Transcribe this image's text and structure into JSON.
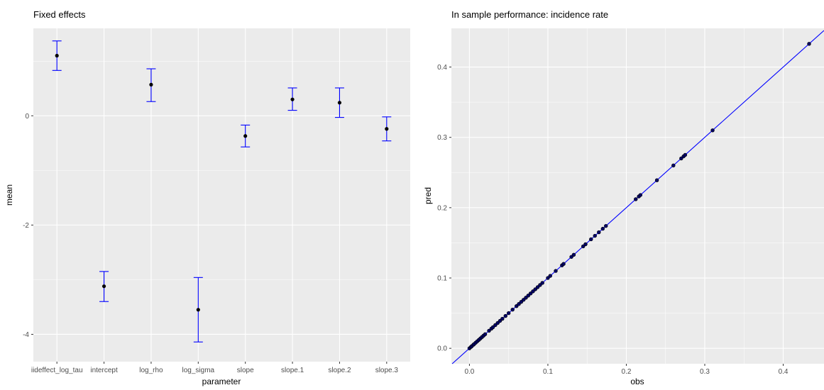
{
  "chart_data": [
    {
      "type": "scatter",
      "subtype": "errorbar",
      "title": "Fixed effects",
      "xlabel": "parameter",
      "ylabel": "mean",
      "categories": [
        "iideffect_log_tau",
        "intercept",
        "log_rho",
        "log_sigma",
        "slope",
        "slope.1",
        "slope.2",
        "slope.3"
      ],
      "series": [
        {
          "values": [
            1.1,
            -3.12,
            0.57,
            -3.55,
            -0.37,
            0.3,
            0.24,
            -0.24
          ],
          "lower": [
            0.83,
            -3.4,
            0.26,
            -4.14,
            -0.57,
            0.1,
            -0.03,
            -0.46
          ],
          "upper": [
            1.37,
            -2.85,
            0.86,
            -2.96,
            -0.17,
            0.51,
            0.51,
            -0.02
          ]
        }
      ],
      "ylim": [
        -4.5,
        1.6
      ],
      "yticks": [
        -4,
        -2,
        0
      ],
      "grid": true,
      "colors": {
        "point": "#000000",
        "errorbar": "#0000ff",
        "panel": "#ebebeb",
        "grid": "#ffffff"
      }
    },
    {
      "type": "scatter",
      "title": "In sample performance: incidence rate",
      "xlabel": "obs",
      "ylabel": "pred",
      "xlim": [
        -0.023,
        0.452
      ],
      "ylim": [
        -0.022,
        0.455
      ],
      "xticks": [
        0.0,
        0.1,
        0.2,
        0.3,
        0.4
      ],
      "yticks": [
        0.0,
        0.1,
        0.2,
        0.3,
        0.4
      ],
      "x": [
        0.0,
        0.002,
        0.003,
        0.005,
        0.006,
        0.008,
        0.01,
        0.012,
        0.014,
        0.016,
        0.018,
        0.02,
        0.025,
        0.028,
        0.03,
        0.033,
        0.036,
        0.039,
        0.042,
        0.046,
        0.05,
        0.055,
        0.06,
        0.063,
        0.066,
        0.069,
        0.072,
        0.075,
        0.078,
        0.081,
        0.084,
        0.087,
        0.09,
        0.093,
        0.1,
        0.103,
        0.11,
        0.118,
        0.12,
        0.13,
        0.133,
        0.145,
        0.148,
        0.155,
        0.16,
        0.165,
        0.17,
        0.174,
        0.212,
        0.216,
        0.218,
        0.239,
        0.26,
        0.27,
        0.273,
        0.275,
        0.31,
        0.433
      ],
      "y": [
        0.0,
        0.002,
        0.003,
        0.005,
        0.006,
        0.008,
        0.01,
        0.012,
        0.014,
        0.016,
        0.018,
        0.02,
        0.025,
        0.028,
        0.03,
        0.033,
        0.036,
        0.039,
        0.042,
        0.046,
        0.05,
        0.055,
        0.06,
        0.063,
        0.066,
        0.069,
        0.072,
        0.075,
        0.078,
        0.081,
        0.084,
        0.087,
        0.09,
        0.093,
        0.1,
        0.103,
        0.11,
        0.118,
        0.12,
        0.13,
        0.133,
        0.145,
        0.148,
        0.155,
        0.16,
        0.165,
        0.17,
        0.174,
        0.212,
        0.216,
        0.218,
        0.239,
        0.26,
        0.27,
        0.273,
        0.275,
        0.31,
        0.433
      ],
      "reference_line": {
        "slope": 1,
        "intercept": 0
      },
      "grid": true,
      "colors": {
        "point_fill": "#000066",
        "point_edge": "#000000",
        "line": "#0000ff",
        "panel": "#ebebeb",
        "grid": "#ffffff"
      }
    }
  ]
}
